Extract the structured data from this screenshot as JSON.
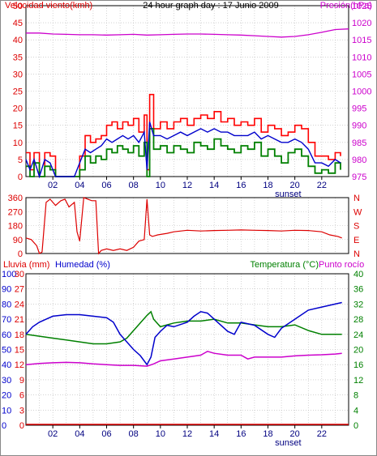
{
  "title": "24 hour graph day : 17 Junio 2009",
  "colors": {
    "wind": "#dd0000",
    "gust": "#ff0000",
    "avgwind": "#0000cc",
    "green": "#008000",
    "pressure": "#cc00cc",
    "hum": "#0000cc",
    "dew": "#cc00cc",
    "frame": "#000000",
    "grid": "#b8b8b8"
  },
  "chart_data": [
    {
      "type": "line",
      "title": "24 hour graph day : 17 Junio 2009",
      "ylabel": "Velocidad viento(kmh)",
      "y2label": "Presión(hPa)",
      "xlim": [
        0,
        24
      ],
      "ylim": [
        0,
        50
      ],
      "y2lim": [
        975,
        1025
      ],
      "yticks": [
        0,
        5,
        10,
        15,
        20,
        25,
        30,
        35,
        40,
        45,
        50
      ],
      "y2ticks": [
        975,
        980,
        985,
        990,
        995,
        1000,
        1005,
        1010,
        1015,
        1020,
        1025
      ],
      "xticks": [
        "02",
        "04",
        "06",
        "08",
        "10",
        "12",
        "14",
        "16",
        "18",
        "20",
        "22"
      ],
      "x_annotation": "sunset",
      "grid": true,
      "series": [
        {
          "axis": "y",
          "x": [
            0,
            0.3,
            0.6,
            1,
            1.4,
            1.8,
            2.2,
            3.6,
            4,
            4.4,
            4.8,
            5.2,
            5.6,
            6,
            6.4,
            6.8,
            7.2,
            7.6,
            8,
            8.4,
            8.8,
            9,
            9.2,
            9.5,
            10,
            10.5,
            11,
            11.5,
            12,
            12.5,
            13,
            13.5,
            14,
            14.5,
            15,
            15.5,
            16,
            16.5,
            17,
            17.5,
            18,
            18.5,
            19,
            19.5,
            20,
            20.5,
            21,
            21.5,
            22,
            22.5,
            23,
            23.4
          ],
          "y": [
            7,
            2,
            7,
            0,
            7,
            6,
            0,
            0,
            6,
            12,
            10,
            11,
            12,
            15,
            16,
            14,
            16,
            15,
            17,
            13,
            18,
            2,
            24,
            14,
            16,
            14,
            16,
            17,
            15,
            17,
            18,
            17,
            19,
            16,
            17,
            15,
            16,
            15,
            17,
            13,
            15,
            14,
            12,
            13,
            15,
            14,
            10,
            6,
            6,
            5,
            7,
            6
          ]
        },
        {
          "axis": "y",
          "x": [
            0,
            0.3,
            0.6,
            1,
            1.4,
            1.8,
            2.2,
            3.6,
            4,
            4.4,
            4.8,
            5.2,
            5.6,
            6,
            6.4,
            6.8,
            7.2,
            7.6,
            8,
            8.4,
            8.8,
            9,
            9.2,
            9.5,
            10,
            10.5,
            11,
            11.5,
            12,
            12.5,
            13,
            13.5,
            14,
            14.5,
            15,
            15.5,
            16,
            16.5,
            17,
            17.5,
            18,
            18.5,
            19,
            19.5,
            20,
            20.5,
            21,
            21.5,
            22,
            22.5,
            23,
            23.4
          ],
          "y": [
            5,
            2,
            5,
            0,
            5,
            4,
            0,
            0,
            4,
            8,
            7,
            8,
            9,
            11,
            10,
            11,
            12,
            11,
            12,
            10,
            13,
            2,
            16,
            12,
            12,
            11,
            12,
            13,
            12,
            13,
            14,
            13,
            14,
            13,
            13,
            12,
            12,
            12,
            13,
            11,
            12,
            11,
            10,
            10,
            11,
            10,
            8,
            4,
            4,
            3,
            5,
            4
          ]
        },
        {
          "axis": "y",
          "x": [
            0,
            0.3,
            0.6,
            1,
            1.4,
            1.8,
            2.2,
            3.6,
            4,
            4.4,
            4.8,
            5.2,
            5.6,
            6,
            6.4,
            6.8,
            7.2,
            7.6,
            8,
            8.4,
            8.8,
            9,
            9.2,
            9.5,
            10,
            10.5,
            11,
            11.5,
            12,
            12.5,
            13,
            13.5,
            14,
            14.5,
            15,
            15.5,
            16,
            16.5,
            17,
            17.5,
            18,
            18.5,
            19,
            19.5,
            20,
            20.5,
            21,
            21.5,
            22,
            22.5,
            23,
            23.4
          ],
          "y": [
            3,
            0,
            4,
            0,
            3,
            2,
            0,
            0,
            2,
            6,
            4,
            6,
            5,
            8,
            7,
            9,
            8,
            7,
            9,
            6,
            10,
            0,
            14,
            8,
            9,
            7,
            9,
            8,
            7,
            10,
            9,
            8,
            11,
            9,
            8,
            7,
            9,
            8,
            10,
            6,
            8,
            6,
            4,
            7,
            8,
            6,
            3,
            1,
            2,
            1,
            4,
            2
          ]
        },
        {
          "axis": "y2",
          "x": [
            0,
            1,
            2,
            3,
            4,
            5,
            6,
            7,
            8,
            9,
            10,
            11,
            12,
            13,
            14,
            15,
            16,
            17,
            18,
            19,
            20,
            21,
            22,
            23,
            24
          ],
          "y": [
            1017,
            1017,
            1016.7,
            1016.6,
            1016.5,
            1016.5,
            1016.4,
            1016.5,
            1016.6,
            1016.4,
            1016.5,
            1016.6,
            1016.7,
            1016.7,
            1016.6,
            1016.5,
            1016.4,
            1016.2,
            1016,
            1015.8,
            1016,
            1016.5,
            1017.2,
            1018,
            1018.2
          ]
        }
      ]
    },
    {
      "type": "line",
      "ylabel": "",
      "ylim": [
        0,
        360
      ],
      "yticks": [
        0,
        90,
        180,
        270,
        360
      ],
      "y2ticks": [
        "N",
        "W",
        "S",
        "E",
        "N"
      ],
      "xlim": [
        0,
        24
      ],
      "grid": true,
      "series": [
        {
          "x": [
            0,
            0.4,
            0.8,
            1.0,
            1.2,
            1.5,
            1.8,
            2.2,
            2.6,
            2.9,
            3.2,
            3.6,
            3.8,
            4.0,
            4.3,
            4.6,
            4.9,
            5.2,
            5.4,
            5.6,
            6.0,
            6.5,
            7.0,
            7.5,
            8.0,
            8.4,
            8.8,
            9.0,
            9.2,
            9.4,
            9.8,
            10.5,
            11,
            12,
            13,
            14,
            15,
            16,
            17,
            18,
            19,
            20,
            21,
            22,
            22.6,
            23.2,
            23.5
          ],
          "y": [
            100,
            90,
            50,
            0,
            10,
            330,
            350,
            310,
            340,
            350,
            300,
            330,
            140,
            80,
            360,
            350,
            340,
            340,
            0,
            20,
            30,
            20,
            30,
            20,
            40,
            80,
            90,
            350,
            120,
            110,
            120,
            130,
            140,
            150,
            145,
            148,
            150,
            152,
            150,
            148,
            145,
            150,
            148,
            140,
            120,
            110,
            100
          ]
        }
      ]
    },
    {
      "type": "line",
      "ylabel": "Lluvia (mm)",
      "ylabel2": "Humedad (%)",
      "y2label": "Temperatura (°C)",
      "y2label2": "Punto rocío",
      "x_annotation": "sunset",
      "xticks": [
        "02",
        "04",
        "06",
        "08",
        "10",
        "12",
        "14",
        "16",
        "18",
        "20",
        "22"
      ],
      "xlim": [
        0,
        24
      ],
      "ylim": [
        0,
        30
      ],
      "yticks": [
        0,
        3,
        6,
        9,
        12,
        15,
        18,
        21,
        24,
        27,
        30
      ],
      "yticks_hum": [
        0,
        10,
        20,
        30,
        40,
        50,
        60,
        70,
        80,
        90,
        100
      ],
      "y2lim": [
        0,
        40
      ],
      "y2ticks": [
        0,
        4,
        8,
        12,
        16,
        20,
        24,
        28,
        32,
        36,
        40
      ],
      "grid": true,
      "series": [
        {
          "axis": "rain",
          "x": [
            0,
            24
          ],
          "y": [
            0,
            0
          ]
        },
        {
          "axis": "hum",
          "x": [
            0,
            0.5,
            1,
            1.5,
            2,
            3,
            4,
            5,
            6,
            6.5,
            7,
            7.5,
            8,
            8.5,
            9,
            9.3,
            9.6,
            10,
            10.5,
            11,
            12,
            12.5,
            13,
            13.5,
            14,
            15,
            15.5,
            16,
            17,
            18,
            18.5,
            19,
            20,
            21,
            22,
            23,
            23.5
          ],
          "y": [
            60,
            65,
            68,
            70,
            72,
            73,
            73,
            72,
            71,
            68,
            60,
            55,
            50,
            46,
            40,
            45,
            58,
            62,
            66,
            65,
            68,
            72,
            75,
            74,
            70,
            62,
            60,
            68,
            66,
            60,
            58,
            64,
            70,
            76,
            78,
            80,
            81
          ]
        },
        {
          "axis": "t",
          "x": [
            0,
            1,
            2,
            3,
            4,
            5,
            6,
            7,
            7.5,
            8,
            8.5,
            9,
            9.3,
            9.5,
            10,
            10.5,
            11,
            12,
            13,
            14,
            15,
            16,
            17,
            18,
            19,
            20,
            21,
            22,
            23,
            23.5
          ],
          "y": [
            24,
            23.5,
            23,
            22.5,
            22,
            21.5,
            21.5,
            22,
            23,
            25,
            27,
            29,
            30,
            28,
            26,
            26.5,
            27,
            27.5,
            27.5,
            28,
            27,
            27,
            26.5,
            26,
            26,
            26.5,
            25,
            24,
            24,
            24
          ]
        },
        {
          "axis": "t",
          "x": [
            0,
            1,
            2,
            3,
            4,
            5,
            6,
            7,
            8,
            9,
            9.5,
            10,
            11,
            12,
            13,
            13.5,
            14,
            15,
            16,
            16.5,
            17,
            18,
            19,
            20,
            21,
            22,
            23,
            23.5
          ],
          "y": [
            16,
            16.3,
            16.5,
            16.6,
            16.5,
            16.2,
            16,
            15.8,
            15.8,
            15.6,
            16.2,
            17,
            17.5,
            18,
            18.5,
            19.5,
            19,
            18.5,
            18.5,
            17.5,
            18,
            18,
            18,
            18.3,
            18.5,
            18.6,
            18.8,
            19
          ]
        }
      ]
    }
  ]
}
